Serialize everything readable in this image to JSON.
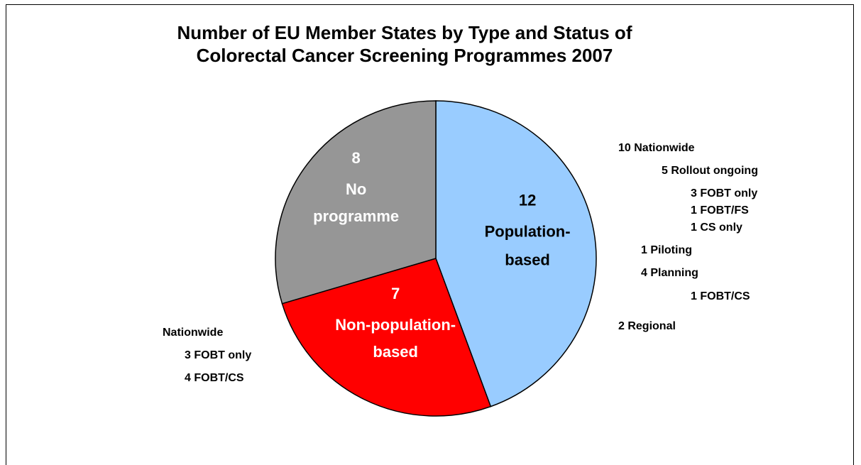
{
  "chart_data": {
    "type": "pie",
    "title_lines": [
      "Number of EU Member States by Type and Status of",
      "Colorectal Cancer Screening Programmes 2007"
    ],
    "slices": [
      {
        "value": 12,
        "label_lines": [
          "Population-",
          "based"
        ],
        "color": "#99ccff",
        "text_color": "#000000"
      },
      {
        "value": 7,
        "label_lines": [
          "Non-population-",
          "based"
        ],
        "color": "#ff0000",
        "text_color": "#ffffff"
      },
      {
        "value": 8,
        "label_lines": [
          "No",
          "programme"
        ],
        "color": "#969696",
        "text_color": "#ffffff"
      }
    ],
    "start_angle_deg": 0,
    "direction": "clockwise"
  },
  "annotations": {
    "population_based_breakdown": [
      "10 Nationwide",
      "5 Rollout ongoing",
      "3 FOBT only",
      "1 FOBT/FS",
      "1 CS only",
      "1 Piloting",
      "4 Planning",
      "1 FOBT/CS",
      "2 Regional"
    ],
    "non_population_based_breakdown": [
      "Nationwide",
      "3 FOBT only",
      "4 FOBT/CS"
    ]
  }
}
